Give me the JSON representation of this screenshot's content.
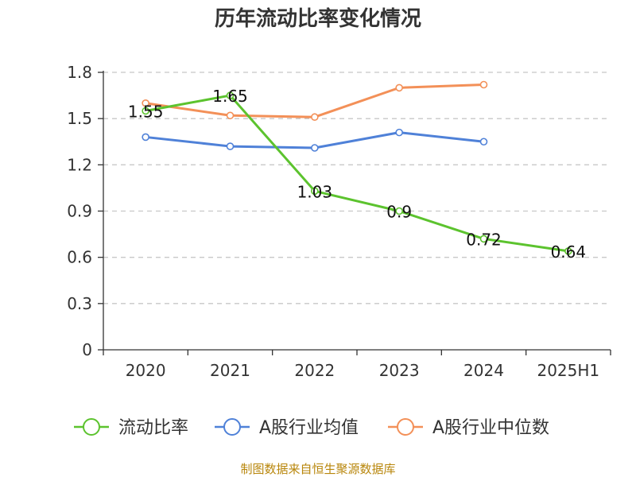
{
  "chart_data": {
    "type": "line",
    "title": "历年流动比率变化情况",
    "categories": [
      "2020",
      "2021",
      "2022",
      "2023",
      "2024",
      "2025H1"
    ],
    "ylim": [
      0,
      1.8
    ],
    "yticks": [
      "0",
      "0.3",
      "0.6",
      "0.9",
      "1.2",
      "1.5",
      "1.8"
    ],
    "grid": true,
    "legend_position": "bottom",
    "series": [
      {
        "name": "流动比率",
        "color": "#5cc32e",
        "values": [
          1.55,
          1.65,
          1.03,
          0.9,
          0.72,
          0.64
        ],
        "labels": [
          "1.55",
          "1.65",
          "1.03",
          "0.9",
          "0.72",
          "0.64"
        ]
      },
      {
        "name": "A股行业均值",
        "color": "#4f81d8",
        "values": [
          1.38,
          1.32,
          1.31,
          1.41,
          1.35,
          null
        ]
      },
      {
        "name": "A股行业中位数",
        "color": "#f39058",
        "values": [
          1.6,
          1.52,
          1.51,
          1.7,
          1.72,
          null
        ]
      }
    ]
  },
  "footer": {
    "source": "制图数据来自恒生聚源数据库"
  }
}
